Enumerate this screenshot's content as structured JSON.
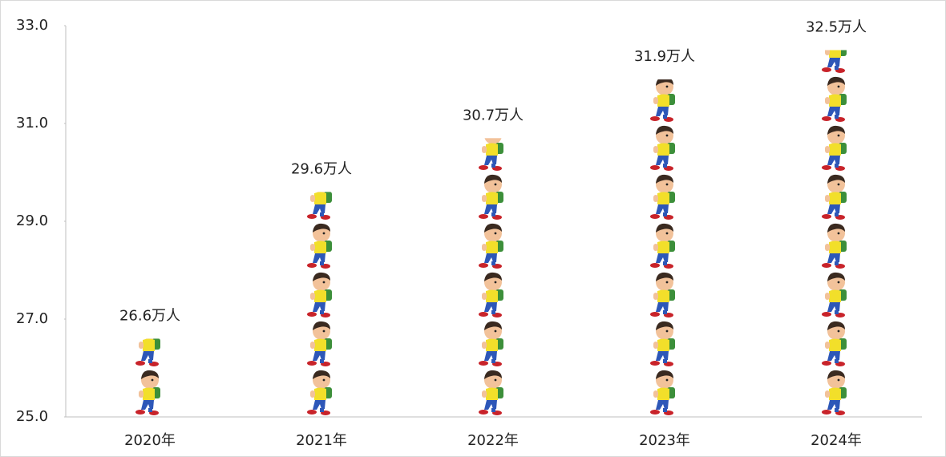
{
  "chart_data": {
    "type": "pictograph",
    "categories": [
      "2020年",
      "2021年",
      "2022年",
      "2023年",
      "2024年"
    ],
    "values": [
      26.6,
      29.6,
      30.7,
      31.9,
      32.5
    ],
    "value_labels": [
      "26.6万人",
      "29.6万人",
      "30.7万人",
      "31.9万人",
      "32.5万人"
    ],
    "ylim": [
      25,
      33
    ],
    "yticks": [
      {
        "value": 25,
        "label": "25.0"
      },
      {
        "value": 27,
        "label": "27.0"
      },
      {
        "value": 29,
        "label": "29.0"
      },
      {
        "value": 31,
        "label": "31.0"
      },
      {
        "value": 33,
        "label": "33.0"
      }
    ]
  }
}
